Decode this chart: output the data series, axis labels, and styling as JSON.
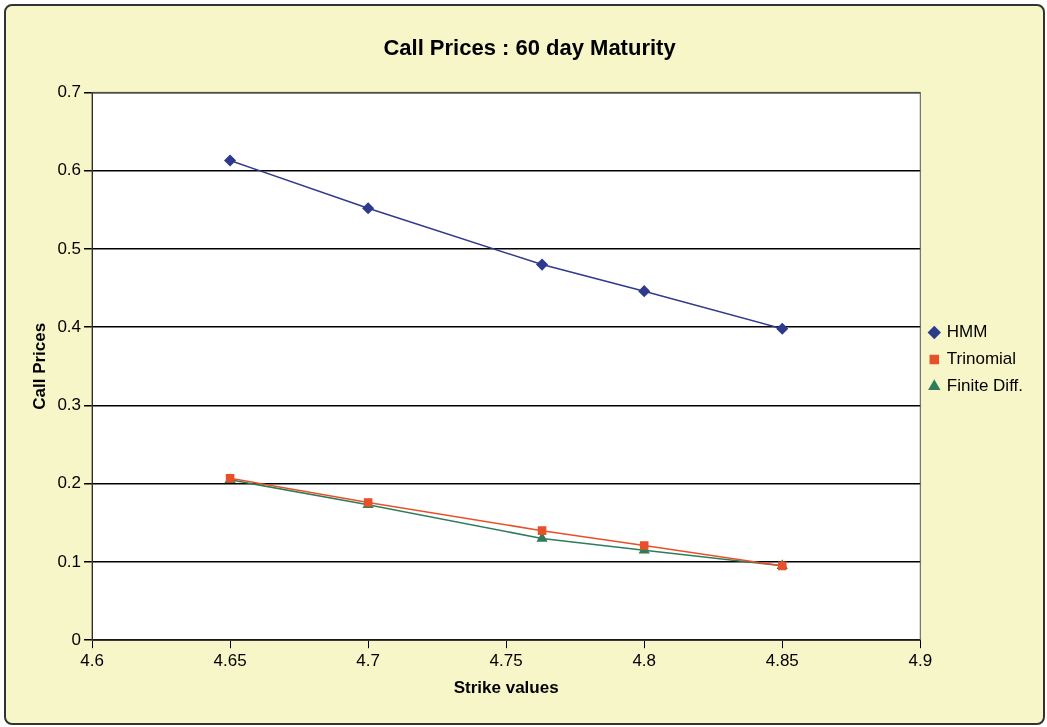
{
  "chart_data": {
    "type": "line",
    "title": "Call Prices : 60 day Maturity",
    "xlabel": "Strike values",
    "ylabel": "Call Prices",
    "series": [
      {
        "name": "HMM",
        "color": "#2e3a8c",
        "marker": "diamond",
        "x": [
          4.65,
          4.7,
          4.763,
          4.8,
          4.85
        ],
        "values": [
          0.613,
          0.552,
          0.48,
          0.446,
          0.398
        ]
      },
      {
        "name": "Trinomial",
        "color": "#e8502a",
        "marker": "square",
        "x": [
          4.65,
          4.7,
          4.763,
          4.8,
          4.85
        ],
        "values": [
          0.207,
          0.176,
          0.14,
          0.121,
          0.095
        ]
      },
      {
        "name": "Finite Diff.",
        "color": "#2e7d5a",
        "marker": "triangle",
        "x": [
          4.65,
          4.7,
          4.763,
          4.8,
          4.85
        ],
        "values": [
          0.205,
          0.173,
          0.13,
          0.115,
          0.095
        ]
      }
    ],
    "xlim": [
      4.6,
      4.9
    ],
    "xticks": [
      4.6,
      4.65,
      4.7,
      4.75,
      4.8,
      4.85,
      4.9
    ],
    "ylim": [
      0,
      0.7
    ],
    "yticks": [
      0,
      0.1,
      0.2,
      0.3,
      0.4,
      0.5,
      0.6,
      0.7
    ],
    "grid": "y",
    "legend": "right",
    "line_style": "solid"
  }
}
